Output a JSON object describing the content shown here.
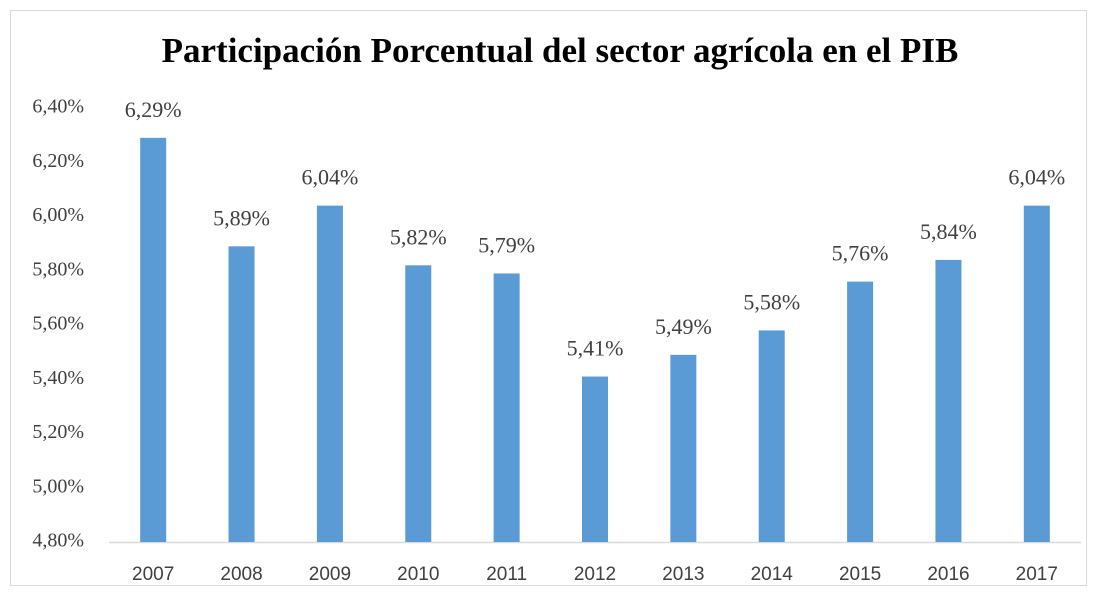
{
  "chart_data": {
    "type": "bar",
    "title": "Participación Porcentual del sector agrícola en el PIB",
    "categories": [
      "2007",
      "2008",
      "2009",
      "2010",
      "2011",
      "2012",
      "2013",
      "2014",
      "2015",
      "2016",
      "2017"
    ],
    "values": [
      6.29,
      5.89,
      6.04,
      5.82,
      5.79,
      5.41,
      5.49,
      5.58,
      5.76,
      5.84,
      6.04
    ],
    "value_labels": [
      "6,29%",
      "5,89%",
      "6,04%",
      "5,82%",
      "5,79%",
      "5,41%",
      "5,49%",
      "5,58%",
      "5,76%",
      "5,84%",
      "6,04%"
    ],
    "color": "#5b9bd5",
    "ylim": [
      4.8,
      6.4
    ],
    "yticks": [
      {
        "value": 4.8,
        "label": "4,80%"
      },
      {
        "value": 5.0,
        "label": "5,00%"
      },
      {
        "value": 5.2,
        "label": "5,20%"
      },
      {
        "value": 5.4,
        "label": "5,40%"
      },
      {
        "value": 5.6,
        "label": "5,60%"
      },
      {
        "value": 5.8,
        "label": "5,80%"
      },
      {
        "value": 6.0,
        "label": "6,00%"
      },
      {
        "value": 6.2,
        "label": "6,20%"
      },
      {
        "value": 6.4,
        "label": "6,40%"
      }
    ],
    "grid": false
  }
}
